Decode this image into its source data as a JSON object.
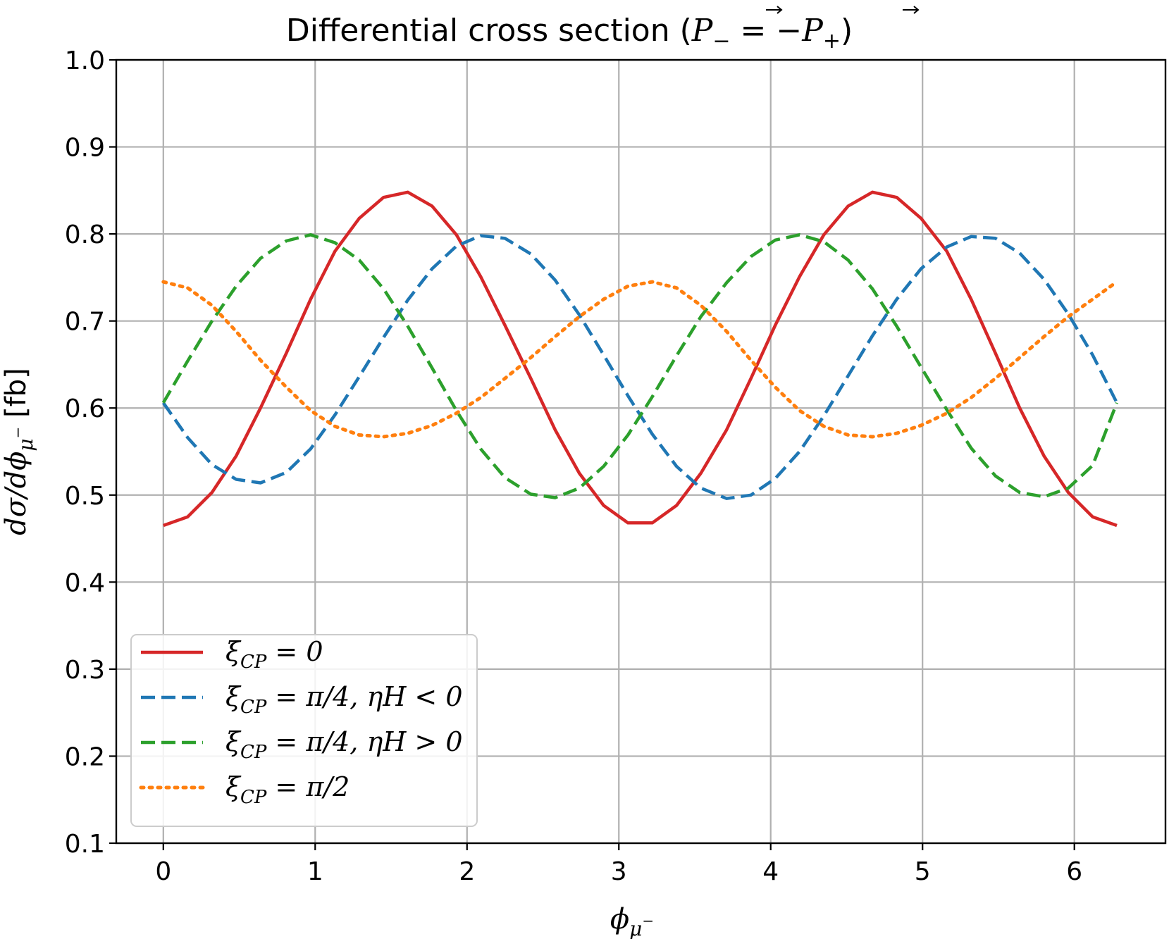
{
  "chart_data": {
    "type": "line",
    "title_prefix": "Differential cross section (",
    "title_math": "P− = −P+",
    "title_suffix": ")",
    "xlabel": "ϕμ⁻",
    "ylabel": "dσ/dϕμ⁻ [fb]",
    "xlim": [
      -0.31,
      6.6
    ],
    "ylim": [
      0.1,
      1.0
    ],
    "xticks": [
      0,
      1,
      2,
      3,
      4,
      5,
      6
    ],
    "xtick_labels": [
      "0",
      "1",
      "2",
      "3",
      "4",
      "5",
      "6"
    ],
    "yticks": [
      0.1,
      0.2,
      0.3,
      0.4,
      0.5,
      0.6,
      0.7,
      0.8,
      0.9,
      1.0
    ],
    "ytick_labels": [
      "0.1",
      "0.2",
      "0.3",
      "0.4",
      "0.5",
      "0.6",
      "0.7",
      "0.8",
      "0.9",
      "1.0"
    ],
    "grid": true,
    "legend_position": "lower-left",
    "x": [
      0.0,
      0.16,
      0.32,
      0.48,
      0.64,
      0.81,
      0.97,
      1.13,
      1.29,
      1.45,
      1.61,
      1.77,
      1.93,
      2.09,
      2.25,
      2.42,
      2.58,
      2.74,
      2.9,
      3.06,
      3.22,
      3.38,
      3.54,
      3.71,
      3.87,
      4.03,
      4.19,
      4.35,
      4.51,
      4.67,
      4.83,
      4.99,
      5.16,
      5.32,
      5.48,
      5.64,
      5.8,
      5.96,
      6.12,
      6.28
    ],
    "series": [
      {
        "name": "ξCP = 0",
        "color": "#d62728",
        "style": "solid",
        "values": [
          0.465,
          0.475,
          0.503,
          0.545,
          0.6,
          0.663,
          0.725,
          0.78,
          0.818,
          0.842,
          0.848,
          0.832,
          0.799,
          0.751,
          0.695,
          0.634,
          0.575,
          0.525,
          0.488,
          0.468,
          0.468,
          0.488,
          0.525,
          0.575,
          0.634,
          0.695,
          0.751,
          0.799,
          0.832,
          0.848,
          0.842,
          0.818,
          0.78,
          0.725,
          0.663,
          0.6,
          0.545,
          0.503,
          0.475,
          0.465
        ]
      },
      {
        "name": "ξCP = π/4,  ηH < 0",
        "color": "#1f77b4",
        "style": "dashed",
        "values": [
          0.606,
          0.566,
          0.535,
          0.518,
          0.514,
          0.526,
          0.553,
          0.592,
          0.636,
          0.681,
          0.724,
          0.76,
          0.786,
          0.798,
          0.795,
          0.777,
          0.747,
          0.707,
          0.661,
          0.614,
          0.57,
          0.533,
          0.508,
          0.496,
          0.5,
          0.519,
          0.55,
          0.591,
          0.637,
          0.683,
          0.725,
          0.76,
          0.785,
          0.797,
          0.795,
          0.778,
          0.748,
          0.708,
          0.661,
          0.606
        ]
      },
      {
        "name": "ξCP = π/4,  ηH > 0",
        "color": "#2ca02c",
        "style": "dashed",
        "values": [
          0.606,
          0.654,
          0.7,
          0.74,
          0.772,
          0.792,
          0.799,
          0.79,
          0.77,
          0.737,
          0.694,
          0.646,
          0.597,
          0.553,
          0.52,
          0.501,
          0.497,
          0.508,
          0.533,
          0.569,
          0.613,
          0.66,
          0.705,
          0.744,
          0.774,
          0.793,
          0.799,
          0.791,
          0.77,
          0.737,
          0.694,
          0.647,
          0.598,
          0.554,
          0.522,
          0.503,
          0.498,
          0.508,
          0.534,
          0.606
        ]
      },
      {
        "name": "ξCP = π/2",
        "color": "#ff7f0e",
        "style": "dotted",
        "values": [
          0.745,
          0.738,
          0.718,
          0.688,
          0.655,
          0.624,
          0.597,
          0.579,
          0.569,
          0.567,
          0.571,
          0.58,
          0.594,
          0.612,
          0.634,
          0.658,
          0.682,
          0.705,
          0.725,
          0.74,
          0.745,
          0.738,
          0.718,
          0.688,
          0.655,
          0.624,
          0.597,
          0.579,
          0.569,
          0.567,
          0.571,
          0.58,
          0.594,
          0.612,
          0.634,
          0.658,
          0.682,
          0.705,
          0.725,
          0.745
        ]
      }
    ]
  },
  "legend": {
    "entries": [
      {
        "lhs": "ξCP",
        "rhs": " = 0"
      },
      {
        "lhs": "ξCP",
        "rhs": " = π/4,  ηH < 0"
      },
      {
        "lhs": "ξCP",
        "rhs": " = π/4,  ηH > 0"
      },
      {
        "lhs": "ξCP",
        "rhs": " = π/2"
      }
    ]
  }
}
